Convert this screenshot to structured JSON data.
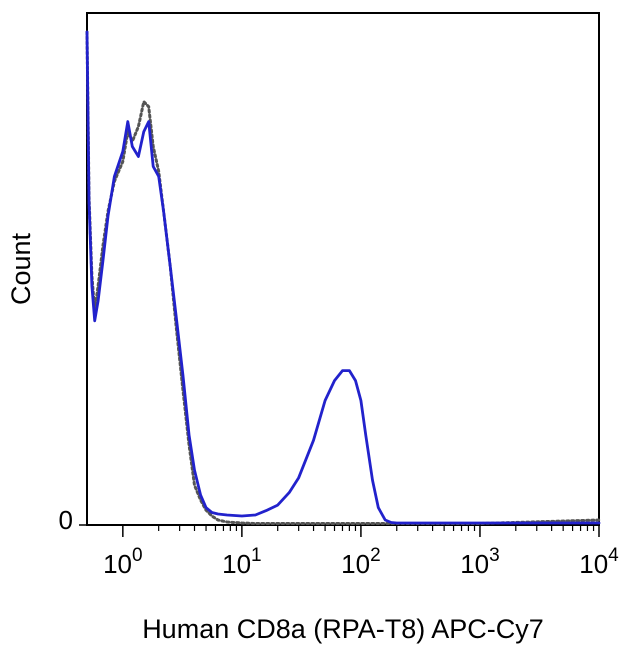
{
  "chart_data": {
    "type": "line",
    "title": "",
    "xlabel": "Human CD8a (RPA-T8) APC-Cy7",
    "ylabel": "Count",
    "x_scale": "log",
    "xlim": [
      0.5,
      10000
    ],
    "ylim": [
      0,
      100
    ],
    "grid": false,
    "legend": "none",
    "x_ticks": [
      {
        "base": "10",
        "exp": "0",
        "value": 1
      },
      {
        "base": "10",
        "exp": "1",
        "value": 10
      },
      {
        "base": "10",
        "exp": "2",
        "value": 100
      },
      {
        "base": "10",
        "exp": "3",
        "value": 1000
      },
      {
        "base": "10",
        "exp": "4",
        "value": 10000
      }
    ],
    "y_ticks": [
      {
        "label": "0",
        "value": 0
      }
    ],
    "series": [
      {
        "style": "solid",
        "color": "#2222cc",
        "x": [
          0.5,
          0.52,
          0.55,
          0.58,
          0.62,
          0.68,
          0.75,
          0.85,
          1.0,
          1.1,
          1.2,
          1.35,
          1.5,
          1.65,
          1.8,
          2.0,
          2.2,
          2.5,
          2.8,
          3.2,
          3.6,
          4.0,
          4.5,
          5.0,
          5.6,
          6.3,
          7.5,
          10,
          13,
          16,
          20,
          25,
          30,
          40,
          50,
          60,
          70,
          80,
          90,
          100,
          110,
          125,
          140,
          160,
          180,
          200,
          250,
          500,
          1000,
          3000,
          10000
        ],
        "y": [
          99,
          65,
          48,
          41,
          45,
          53,
          62,
          70,
          75,
          81,
          76,
          74,
          79,
          81,
          72,
          70,
          63,
          52,
          42,
          30,
          18,
          11,
          6,
          3.5,
          2.5,
          2.2,
          2.0,
          1.8,
          2.0,
          2.9,
          4.0,
          6.5,
          9.5,
          17,
          25,
          29,
          31,
          31,
          29,
          25,
          18,
          9,
          3.5,
          1.0,
          0.5,
          0.4,
          0.4,
          0.4,
          0.4,
          0.4,
          0.4
        ]
      },
      {
        "style": "dotted",
        "color": "#555555",
        "x": [
          0.5,
          0.52,
          0.55,
          0.58,
          0.62,
          0.68,
          0.75,
          0.85,
          1.0,
          1.1,
          1.2,
          1.35,
          1.5,
          1.65,
          1.8,
          2.0,
          2.2,
          2.5,
          2.8,
          3.2,
          3.6,
          4.0,
          4.5,
          5.0,
          5.6,
          6.3,
          7.5,
          10,
          13,
          16,
          20,
          30,
          100,
          1000,
          10000
        ],
        "y": [
          99,
          66,
          50,
          43,
          48,
          56,
          63,
          69,
          73,
          79,
          77,
          80,
          85,
          84,
          76,
          71,
          63,
          52,
          40,
          27,
          16,
          8,
          5,
          3,
          1.8,
          1.0,
          0.6,
          0.4,
          0.3,
          0.3,
          0.3,
          0.3,
          0.3,
          0.3,
          1.0
        ]
      }
    ]
  }
}
